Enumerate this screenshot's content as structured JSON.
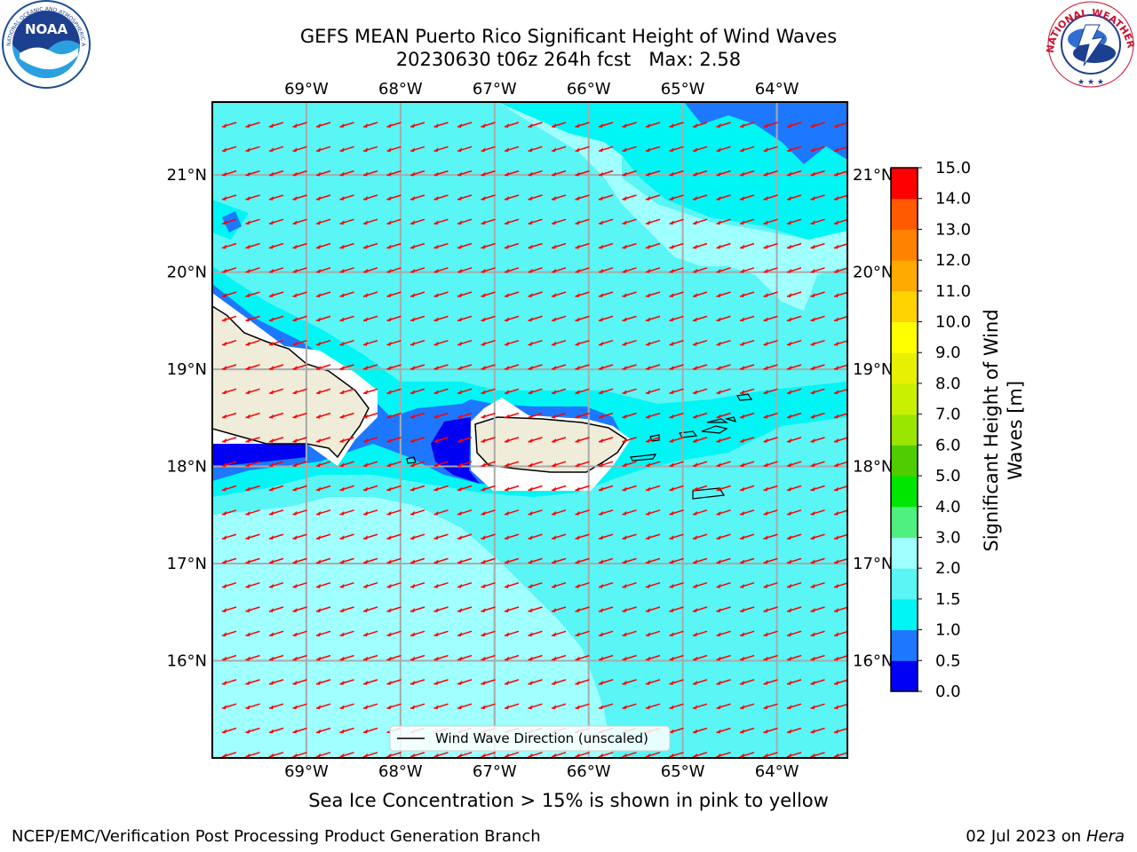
{
  "header": {
    "title_line1": "GEFS MEAN Puerto Rico Significant Height of Wind Waves",
    "title_line2": "20230630 t06z 264h fcst   Max: 2.58"
  },
  "logos": {
    "left": "NOAA",
    "left_ring_text": "NATIONAL OCEANIC AND ATMOSPHERIC ADMINISTRATION · U.S. DEPARTMENT OF COMMERCE",
    "right_ring_text": "NATIONAL WEATHER SERVICE"
  },
  "map": {
    "lon_labels": [
      "69°W",
      "68°W",
      "67°W",
      "66°W",
      "65°W",
      "64°W"
    ],
    "lat_labels": [
      "21°N",
      "20°N",
      "19°N",
      "18°N",
      "17°N",
      "16°N"
    ],
    "lon_values": [
      -69,
      -68,
      -67,
      -66,
      -65,
      -64
    ],
    "lat_values": [
      21,
      20,
      19,
      18,
      17,
      16
    ],
    "extent": {
      "lon_min": -70.0,
      "lon_max": -63.25,
      "lat_min": 15.0,
      "lat_max": 21.75
    },
    "arrow_direction": "toward west-southwest",
    "legend_label": "Wind Wave Direction (unscaled)"
  },
  "colorbar": {
    "label": "Significant Height of Wind Waves [m]",
    "label_line1": "Significant Height of Wind",
    "label_line2": "Waves [m]",
    "ticks": [
      "0.0",
      "0.5",
      "1.0",
      "1.5",
      "2.0",
      "3.0",
      "4.0",
      "5.0",
      "6.0",
      "7.0",
      "8.0",
      "9.0",
      "10.0",
      "11.0",
      "12.0",
      "13.0",
      "14.0",
      "15.0"
    ],
    "colors": [
      "#0000f5",
      "#1e78ff",
      "#00f5f5",
      "#5af5f5",
      "#a0ffff",
      "#50f080",
      "#00e600",
      "#50cd00",
      "#9be600",
      "#c8f000",
      "#e6f000",
      "#ffff00",
      "#ffd200",
      "#ffaa00",
      "#ff8200",
      "#ff5a00",
      "#ff0000"
    ]
  },
  "subtitle": "Sea Ice Concentration > 15% is shown in pink to yellow",
  "footer": {
    "left": "NCEP/EMC/Verification Post Processing Product Generation Branch",
    "right_prefix": "02 Jul 2023 on ",
    "right_italic": "Hera"
  }
}
